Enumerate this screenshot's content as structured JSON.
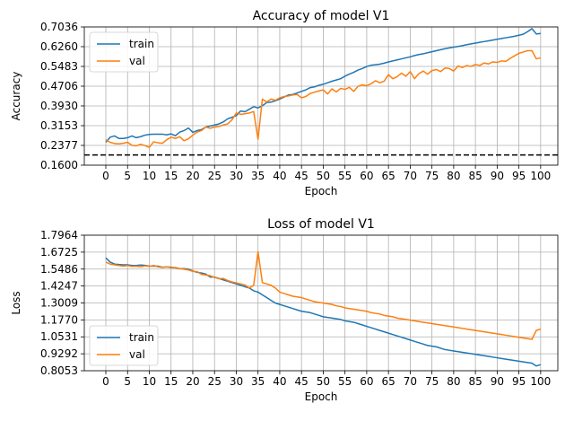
{
  "chart_data": [
    {
      "type": "line",
      "title": "Accuracy of model V1",
      "xlabel": "Epoch",
      "ylabel": "Accuracy",
      "xlim": [
        -4.95,
        103.95
      ],
      "ylim": [
        0.16,
        0.7036
      ],
      "xticks": [
        "0",
        "5",
        "10",
        "15",
        "20",
        "25",
        "30",
        "35",
        "40",
        "45",
        "50",
        "55",
        "60",
        "65",
        "70",
        "75",
        "80",
        "85",
        "90",
        "95",
        "100"
      ],
      "yticks": [
        "0.1600",
        "0.2377",
        "0.3153",
        "0.3930",
        "0.4706",
        "0.5483",
        "0.6260",
        "0.7036"
      ],
      "grid": true,
      "legend_position": "upper left",
      "reference_line": {
        "y": 0.2,
        "style": "dashed",
        "color": "#000000"
      },
      "series": [
        {
          "name": "train",
          "color": "#1f77b4",
          "values": [
            0.25,
            0.27,
            0.275,
            0.265,
            0.265,
            0.268,
            0.275,
            0.268,
            0.272,
            0.278,
            0.281,
            0.282,
            0.282,
            0.282,
            0.279,
            0.283,
            0.276,
            0.29,
            0.296,
            0.306,
            0.289,
            0.296,
            0.3,
            0.31,
            0.314,
            0.318,
            0.322,
            0.33,
            0.342,
            0.348,
            0.355,
            0.373,
            0.37,
            0.38,
            0.39,
            0.385,
            0.394,
            0.406,
            0.408,
            0.413,
            0.42,
            0.428,
            0.436,
            0.438,
            0.444,
            0.45,
            0.456,
            0.465,
            0.468,
            0.474,
            0.478,
            0.484,
            0.49,
            0.495,
            0.5,
            0.51,
            0.518,
            0.525,
            0.534,
            0.54,
            0.548,
            0.553,
            0.555,
            0.557,
            0.561,
            0.566,
            0.57,
            0.574,
            0.578,
            0.582,
            0.586,
            0.591,
            0.595,
            0.598,
            0.602,
            0.606,
            0.61,
            0.614,
            0.618,
            0.621,
            0.624,
            0.627,
            0.63,
            0.634,
            0.637,
            0.64,
            0.643,
            0.646,
            0.649,
            0.652,
            0.655,
            0.658,
            0.661,
            0.664,
            0.667,
            0.671,
            0.675,
            0.685,
            0.697,
            0.676,
            0.678
          ]
        },
        {
          "name": "val",
          "color": "#ff7f0e",
          "values": [
            0.26,
            0.25,
            0.245,
            0.244,
            0.246,
            0.25,
            0.238,
            0.236,
            0.242,
            0.237,
            0.23,
            0.252,
            0.248,
            0.246,
            0.26,
            0.27,
            0.265,
            0.272,
            0.256,
            0.264,
            0.278,
            0.29,
            0.296,
            0.31,
            0.305,
            0.31,
            0.312,
            0.318,
            0.322,
            0.338,
            0.365,
            0.36,
            0.362,
            0.365,
            0.371,
            0.262,
            0.42,
            0.408,
            0.42,
            0.415,
            0.425,
            0.43,
            0.432,
            0.436,
            0.438,
            0.425,
            0.43,
            0.442,
            0.447,
            0.452,
            0.456,
            0.44,
            0.46,
            0.448,
            0.462,
            0.458,
            0.466,
            0.45,
            0.47,
            0.476,
            0.472,
            0.48,
            0.492,
            0.484,
            0.49,
            0.516,
            0.5,
            0.508,
            0.522,
            0.51,
            0.528,
            0.5,
            0.52,
            0.53,
            0.518,
            0.532,
            0.536,
            0.528,
            0.542,
            0.54,
            0.53,
            0.55,
            0.544,
            0.552,
            0.548,
            0.556,
            0.552,
            0.562,
            0.558,
            0.566,
            0.564,
            0.57,
            0.568,
            0.58,
            0.59,
            0.6,
            0.605,
            0.61,
            0.61,
            0.578,
            0.582
          ]
        }
      ]
    },
    {
      "type": "line",
      "title": "Loss of model V1",
      "xlabel": "Epoch",
      "ylabel": "Loss",
      "xlim": [
        -4.95,
        103.95
      ],
      "ylim": [
        0.8053,
        1.7964
      ],
      "xticks": [
        "0",
        "5",
        "10",
        "15",
        "20",
        "25",
        "30",
        "35",
        "40",
        "45",
        "50",
        "55",
        "60",
        "65",
        "70",
        "75",
        "80",
        "85",
        "90",
        "95",
        "100"
      ],
      "yticks": [
        "0.8053",
        "0.9292",
        "1.0531",
        "1.1770",
        "1.3009",
        "1.4247",
        "1.5486",
        "1.6725",
        "1.7964"
      ],
      "grid": true,
      "legend_position": "lower left",
      "series": [
        {
          "name": "train",
          "color": "#1f77b4",
          "values": [
            1.63,
            1.6,
            1.585,
            1.582,
            1.58,
            1.58,
            1.575,
            1.575,
            1.578,
            1.576,
            1.57,
            1.57,
            1.57,
            1.562,
            1.565,
            1.562,
            1.558,
            1.551,
            1.552,
            1.548,
            1.535,
            1.525,
            1.52,
            1.512,
            1.49,
            1.49,
            1.48,
            1.47,
            1.46,
            1.45,
            1.44,
            1.43,
            1.42,
            1.41,
            1.39,
            1.38,
            1.36,
            1.34,
            1.32,
            1.3,
            1.29,
            1.28,
            1.27,
            1.26,
            1.25,
            1.24,
            1.235,
            1.23,
            1.22,
            1.21,
            1.2,
            1.195,
            1.19,
            1.185,
            1.18,
            1.17,
            1.165,
            1.16,
            1.15,
            1.14,
            1.13,
            1.12,
            1.11,
            1.1,
            1.09,
            1.08,
            1.07,
            1.06,
            1.05,
            1.04,
            1.03,
            1.02,
            1.01,
            1.0,
            0.99,
            0.985,
            0.98,
            0.97,
            0.96,
            0.955,
            0.95,
            0.945,
            0.94,
            0.935,
            0.93,
            0.925,
            0.92,
            0.915,
            0.91,
            0.905,
            0.9,
            0.895,
            0.89,
            0.885,
            0.88,
            0.875,
            0.87,
            0.865,
            0.86,
            0.84,
            0.85
          ]
        },
        {
          "name": "val",
          "color": "#ff7f0e",
          "values": [
            1.6,
            1.585,
            1.58,
            1.575,
            1.57,
            1.575,
            1.568,
            1.57,
            1.565,
            1.572,
            1.568,
            1.575,
            1.565,
            1.56,
            1.565,
            1.558,
            1.56,
            1.552,
            1.548,
            1.542,
            1.532,
            1.53,
            1.51,
            1.505,
            1.5,
            1.488,
            1.478,
            1.48,
            1.465,
            1.455,
            1.448,
            1.44,
            1.432,
            1.41,
            1.43,
            1.675,
            1.45,
            1.44,
            1.43,
            1.41,
            1.38,
            1.37,
            1.36,
            1.35,
            1.345,
            1.34,
            1.33,
            1.32,
            1.31,
            1.305,
            1.3,
            1.295,
            1.29,
            1.28,
            1.275,
            1.265,
            1.26,
            1.255,
            1.25,
            1.245,
            1.24,
            1.23,
            1.225,
            1.22,
            1.21,
            1.205,
            1.2,
            1.19,
            1.185,
            1.18,
            1.175,
            1.17,
            1.165,
            1.16,
            1.155,
            1.15,
            1.145,
            1.14,
            1.135,
            1.13,
            1.125,
            1.12,
            1.115,
            1.11,
            1.105,
            1.1,
            1.095,
            1.09,
            1.085,
            1.08,
            1.075,
            1.07,
            1.065,
            1.06,
            1.055,
            1.05,
            1.045,
            1.04,
            1.035,
            1.1,
            1.11
          ]
        }
      ]
    }
  ]
}
